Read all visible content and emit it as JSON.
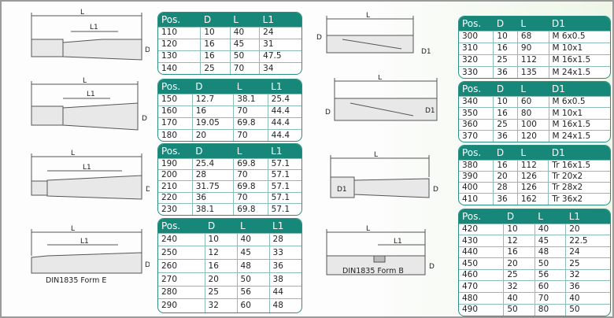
{
  "colors": {
    "header": "#17877a",
    "border": "#2a8f80"
  },
  "drawings": [
    {
      "labels": [
        "L",
        "L1",
        "D"
      ]
    },
    {
      "labels": [
        "L",
        "L1",
        "D"
      ]
    },
    {
      "labels": [
        "L",
        "L1",
        "D"
      ]
    },
    {
      "labels": [
        "L",
        "L1",
        "D"
      ],
      "form": "DIN1835 Form E"
    },
    {
      "labels": [
        "L",
        "D",
        "D1"
      ]
    },
    {
      "labels": [
        "L",
        "D",
        "D1"
      ]
    },
    {
      "labels": [
        "L",
        "D1",
        "D"
      ]
    },
    {
      "labels": [
        "L",
        "L1",
        "D"
      ],
      "form": "DIN1835 Form B"
    }
  ],
  "tables": [
    {
      "headers": [
        "Pos.",
        "D",
        "L",
        "L1"
      ],
      "rows": [
        [
          "110",
          "10",
          "40",
          "24"
        ],
        [
          "120",
          "16",
          "45",
          "31"
        ],
        [
          "130",
          "16",
          "50",
          "47.5"
        ],
        [
          "140",
          "25",
          "70",
          "34"
        ]
      ]
    },
    {
      "headers": [
        "Pos.",
        "D",
        "L",
        "L1"
      ],
      "rows": [
        [
          "150",
          "12.7",
          "38.1",
          "25.4"
        ],
        [
          "160",
          "16",
          "70",
          "44.4"
        ],
        [
          "170",
          "19.05",
          "69.8",
          "44.4"
        ],
        [
          "180",
          "20",
          "70",
          "44.4"
        ]
      ]
    },
    {
      "headers": [
        "Pos.",
        "D",
        "L",
        "L1"
      ],
      "rows": [
        [
          "190",
          "25.4",
          "69.8",
          "57.1"
        ],
        [
          "200",
          "28",
          "70",
          "57.1"
        ],
        [
          "210",
          "31.75",
          "69.8",
          "57.1"
        ],
        [
          "220",
          "36",
          "70",
          "57.1"
        ],
        [
          "230",
          "38.1",
          "69.8",
          "57.1"
        ]
      ]
    },
    {
      "headers": [
        "Pos.",
        "D",
        "L",
        "L1"
      ],
      "rows": [
        [
          "240",
          "10",
          "40",
          "28"
        ],
        [
          "250",
          "12",
          "45",
          "33"
        ],
        [
          "260",
          "16",
          "48",
          "36"
        ],
        [
          "270",
          "20",
          "50",
          "38"
        ],
        [
          "280",
          "25",
          "56",
          "44"
        ],
        [
          "290",
          "32",
          "60",
          "48"
        ]
      ]
    },
    {
      "headers": [
        "Pos.",
        "D",
        "L",
        "D1"
      ],
      "rows": [
        [
          "300",
          "10",
          "68",
          "M 6x0.5"
        ],
        [
          "310",
          "16",
          "90",
          "M 10x1"
        ],
        [
          "320",
          "25",
          "112",
          "M 16x1.5"
        ],
        [
          "330",
          "36",
          "135",
          "M 24x1.5"
        ]
      ]
    },
    {
      "headers": [
        "Pos.",
        "D",
        "L",
        "D1"
      ],
      "rows": [
        [
          "340",
          "10",
          "60",
          "M 6x0.5"
        ],
        [
          "350",
          "16",
          "80",
          "M 10x1"
        ],
        [
          "360",
          "25",
          "100",
          "M 16x1.5"
        ],
        [
          "370",
          "36",
          "120",
          "M 24x1.5"
        ]
      ]
    },
    {
      "headers": [
        "Pos.",
        "D",
        "L",
        "D1"
      ],
      "rows": [
        [
          "380",
          "16",
          "112",
          "Tr 16x1.5"
        ],
        [
          "390",
          "20",
          "126",
          "Tr 20x2"
        ],
        [
          "400",
          "28",
          "126",
          "Tr 28x2"
        ],
        [
          "410",
          "36",
          "162",
          "Tr 36x2"
        ]
      ]
    },
    {
      "headers": [
        "Pos.",
        "D",
        "L",
        "L1"
      ],
      "rows": [
        [
          "420",
          "10",
          "40",
          "20"
        ],
        [
          "430",
          "12",
          "45",
          "22.5"
        ],
        [
          "440",
          "16",
          "48",
          "24"
        ],
        [
          "450",
          "20",
          "50",
          "25"
        ],
        [
          "460",
          "25",
          "56",
          "32"
        ],
        [
          "470",
          "32",
          "60",
          "36"
        ],
        [
          "480",
          "40",
          "70",
          "40"
        ],
        [
          "490",
          "50",
          "80",
          "50"
        ]
      ]
    }
  ]
}
